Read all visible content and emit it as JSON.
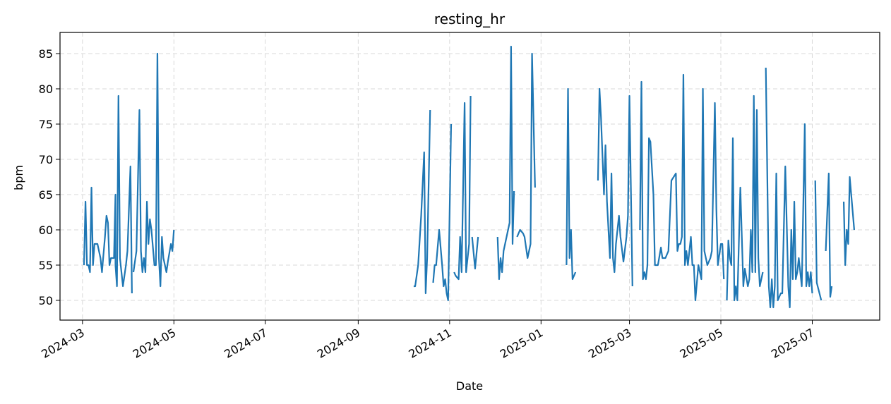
{
  "chart_data": {
    "type": "line",
    "title": "resting_hr",
    "xlabel": "Date",
    "ylabel": "bpm",
    "x_axis": "date",
    "xlim": [
      "2024-02-15",
      "2025-08-15"
    ],
    "ylim": [
      47.2,
      88
    ],
    "grid": true,
    "grid_style": "dashed",
    "line_color": "#1f77b4",
    "x_ticks": [
      "2024-03-01",
      "2024-05-01",
      "2024-07-01",
      "2024-09-01",
      "2024-11-01",
      "2025-01-01",
      "2025-03-01",
      "2025-05-01",
      "2025-07-01"
    ],
    "x_tick_labels": [
      "2024-03",
      "2024-05",
      "2024-07",
      "2024-09",
      "2024-11",
      "2025-01",
      "2025-03",
      "2025-05",
      "2025-07"
    ],
    "y_ticks": [
      50,
      55,
      60,
      65,
      70,
      75,
      80,
      85
    ],
    "y_tick_labels": [
      "50",
      "55",
      "60",
      "65",
      "70",
      "75",
      "80",
      "85"
    ],
    "series": [
      {
        "segments": [
          [
            [
              "2024-03-02",
              55
            ],
            [
              "2024-03-03",
              64
            ],
            [
              "2024-03-04",
              55
            ],
            [
              "2024-03-05",
              55
            ],
            [
              "2024-03-06",
              54
            ],
            [
              "2024-03-07",
              66
            ],
            [
              "2024-03-08",
              55
            ],
            [
              "2024-03-09",
              58
            ],
            [
              "2024-03-10",
              58
            ],
            [
              "2024-03-11",
              58
            ],
            [
              "2024-03-13",
              56
            ],
            [
              "2024-03-14",
              54
            ],
            [
              "2024-03-16",
              59
            ],
            [
              "2024-03-17",
              62
            ],
            [
              "2024-03-18",
              61
            ],
            [
              "2024-03-19",
              55
            ],
            [
              "2024-03-20",
              56
            ],
            [
              "2024-03-22",
              56
            ],
            [
              "2024-03-23",
              65
            ],
            [
              "2024-03-23",
              55
            ],
            [
              "2024-03-24",
              52
            ],
            [
              "2024-03-25",
              79
            ],
            [
              "2024-03-26",
              56
            ],
            [
              "2024-03-28",
              52
            ],
            [
              "2024-03-30",
              55
            ],
            [
              "2024-03-31",
              57
            ],
            [
              "2024-04-02",
              69
            ],
            [
              "2024-04-03",
              51
            ]
          ],
          [
            [
              "2024-04-04",
              54
            ],
            [
              "2024-04-06",
              57
            ],
            [
              "2024-04-08",
              77
            ],
            [
              "2024-04-09",
              57
            ],
            [
              "2024-04-10",
              54
            ],
            [
              "2024-04-11",
              56
            ],
            [
              "2024-04-12",
              54
            ],
            [
              "2024-04-13",
              64
            ],
            [
              "2024-04-14",
              58
            ],
            [
              "2024-04-15",
              61.5
            ],
            [
              "2024-04-16",
              60
            ],
            [
              "2024-04-18",
              55
            ],
            [
              "2024-04-19",
              55
            ],
            [
              "2024-04-20",
              85
            ],
            [
              "2024-04-21",
              56
            ],
            [
              "2024-04-22",
              52
            ],
            [
              "2024-04-23",
              59
            ],
            [
              "2024-04-24",
              56
            ],
            [
              "2024-04-26",
              54
            ],
            [
              "2024-04-27",
              55.5
            ],
            [
              "2024-04-29",
              58
            ],
            [
              "2024-04-30",
              57
            ],
            [
              "2024-05-01",
              60
            ]
          ]
        ]
      },
      {
        "segments": [
          [
            [
              "2024-10-08",
              52
            ],
            [
              "2024-10-09",
              52
            ],
            [
              "2024-10-11",
              55
            ],
            [
              "2024-10-13",
              62
            ],
            [
              "2024-10-15",
              71
            ],
            [
              "2024-10-16",
              51
            ],
            [
              "2024-10-17",
              56
            ],
            [
              "2024-10-19",
              77
            ]
          ],
          [
            [
              "2024-10-21",
              52.5
            ],
            [
              "2024-10-22",
              55
            ],
            [
              "2024-10-23",
              55
            ],
            [
              "2024-10-25",
              60
            ],
            [
              "2024-10-27",
              55
            ],
            [
              "2024-10-28",
              52
            ],
            [
              "2024-10-29",
              53
            ],
            [
              "2024-10-30",
              51
            ],
            [
              "2024-10-31",
              50
            ],
            [
              "2024-11-02",
              75
            ]
          ],
          [
            [
              "2024-11-04",
              54
            ],
            [
              "2024-11-05",
              53.5
            ],
            [
              "2024-11-07",
              53
            ],
            [
              "2024-11-08",
              59
            ],
            [
              "2024-11-09",
              54
            ],
            [
              "2024-11-11",
              78
            ],
            [
              "2024-11-12",
              54
            ],
            [
              "2024-11-14",
              58
            ],
            [
              "2024-11-15",
              79
            ]
          ],
          [
            [
              "2024-11-16",
              59
            ],
            [
              "2024-11-18",
              54.5
            ],
            [
              "2024-11-20",
              59
            ]
          ],
          [
            [
              "2024-12-03",
              59
            ],
            [
              "2024-12-04",
              53
            ],
            [
              "2024-12-05",
              56
            ],
            [
              "2024-12-06",
              54
            ],
            [
              "2024-12-07",
              57
            ],
            [
              "2024-12-09",
              59
            ],
            [
              "2024-12-11",
              61
            ],
            [
              "2024-12-12",
              86
            ],
            [
              "2024-12-13",
              58
            ],
            [
              "2024-12-14",
              65.5
            ]
          ],
          [
            [
              "2024-12-16",
              59
            ],
            [
              "2024-12-18",
              60
            ],
            [
              "2024-12-20",
              59.5
            ],
            [
              "2024-12-21",
              59
            ],
            [
              "2024-12-23",
              56
            ],
            [
              "2024-12-25",
              58
            ],
            [
              "2024-12-26",
              85
            ],
            [
              "2024-12-28",
              66
            ]
          ]
        ]
      },
      {
        "segments": [
          [
            [
              "2025-01-18",
              55
            ],
            [
              "2025-01-19",
              80
            ],
            [
              "2025-01-20",
              56
            ],
            [
              "2025-01-21",
              60
            ],
            [
              "2025-01-22",
              53
            ],
            [
              "2025-01-24",
              54
            ]
          ],
          [
            [
              "2025-02-08",
              67
            ],
            [
              "2025-02-09",
              80
            ],
            [
              "2025-02-10",
              76
            ],
            [
              "2025-02-12",
              65
            ],
            [
              "2025-02-13",
              72
            ],
            [
              "2025-02-14",
              64
            ],
            [
              "2025-02-16",
              56
            ],
            [
              "2025-02-17",
              68
            ],
            [
              "2025-02-18",
              56
            ],
            [
              "2025-02-19",
              54
            ],
            [
              "2025-02-20",
              58
            ],
            [
              "2025-02-22",
              62
            ],
            [
              "2025-02-23",
              59
            ],
            [
              "2025-02-25",
              55.5
            ],
            [
              "2025-02-27",
              59
            ],
            [
              "2025-02-28",
              62
            ],
            [
              "2025-03-01",
              79
            ],
            [
              "2025-03-03",
              52
            ]
          ],
          [
            [
              "2025-03-08",
              60
            ],
            [
              "2025-03-09",
              81
            ],
            [
              "2025-03-10",
              53
            ],
            [
              "2025-03-11",
              54
            ],
            [
              "2025-03-12",
              53
            ],
            [
              "2025-03-13",
              55
            ],
            [
              "2025-03-14",
              73
            ],
            [
              "2025-03-15",
              72.5
            ],
            [
              "2025-03-17",
              65
            ],
            [
              "2025-03-18",
              55
            ],
            [
              "2025-03-20",
              55
            ],
            [
              "2025-03-22",
              57.5
            ],
            [
              "2025-03-23",
              56
            ],
            [
              "2025-03-25",
              56
            ],
            [
              "2025-03-27",
              57
            ],
            [
              "2025-03-29",
              67
            ],
            [
              "2025-04-01",
              68
            ],
            [
              "2025-04-02",
              57
            ],
            [
              "2025-04-03",
              58
            ],
            [
              "2025-04-04",
              58
            ],
            [
              "2025-04-05",
              59
            ],
            [
              "2025-04-06",
              82
            ],
            [
              "2025-04-07",
              55
            ],
            [
              "2025-04-08",
              57
            ],
            [
              "2025-04-09",
              55
            ],
            [
              "2025-04-10",
              57
            ],
            [
              "2025-04-11",
              59
            ],
            [
              "2025-04-12",
              55
            ],
            [
              "2025-04-13",
              55
            ],
            [
              "2025-04-14",
              50
            ],
            [
              "2025-04-16",
              55
            ],
            [
              "2025-04-17",
              54
            ],
            [
              "2025-04-18",
              53
            ],
            [
              "2025-04-19",
              80
            ],
            [
              "2025-04-20",
              57
            ],
            [
              "2025-04-21",
              56
            ],
            [
              "2025-04-22",
              55
            ],
            [
              "2025-04-24",
              56
            ],
            [
              "2025-04-25",
              57
            ],
            [
              "2025-04-27",
              78
            ],
            [
              "2025-04-28",
              63
            ],
            [
              "2025-04-29",
              55
            ],
            [
              "2025-05-01",
              58
            ],
            [
              "2025-05-02",
              58
            ],
            [
              "2025-05-03",
              53
            ]
          ],
          [
            [
              "2025-05-05",
              50
            ],
            [
              "2025-05-06",
              58.5
            ],
            [
              "2025-05-07",
              56
            ],
            [
              "2025-05-08",
              55
            ],
            [
              "2025-05-09",
              73
            ],
            [
              "2025-05-10",
              50
            ],
            [
              "2025-05-11",
              52
            ],
            [
              "2025-05-12",
              50
            ],
            [
              "2025-05-14",
              66
            ],
            [
              "2025-05-16",
              52
            ],
            [
              "2025-05-17",
              54.5
            ],
            [
              "2025-05-19",
              52
            ],
            [
              "2025-05-20",
              53
            ],
            [
              "2025-05-21",
              60
            ],
            [
              "2025-05-22",
              54
            ],
            [
              "2025-05-23",
              79
            ],
            [
              "2025-05-24",
              54
            ],
            [
              "2025-05-25",
              77
            ],
            [
              "2025-05-26",
              56
            ],
            [
              "2025-05-27",
              52
            ],
            [
              "2025-05-28",
              53
            ],
            [
              "2025-05-29",
              54
            ]
          ],
          [
            [
              "2025-05-31",
              83
            ],
            [
              "2025-06-02",
              52
            ],
            [
              "2025-06-03",
              49
            ],
            [
              "2025-06-04",
              53
            ],
            [
              "2025-06-05",
              49
            ],
            [
              "2025-06-06",
              52
            ],
            [
              "2025-06-07",
              68
            ],
            [
              "2025-06-08",
              50
            ],
            [
              "2025-06-10",
              51
            ],
            [
              "2025-06-11",
              51
            ],
            [
              "2025-06-13",
              69
            ],
            [
              "2025-06-15",
              52
            ],
            [
              "2025-06-16",
              49
            ],
            [
              "2025-06-17",
              60
            ],
            [
              "2025-06-18",
              53
            ],
            [
              "2025-06-19",
              64
            ],
            [
              "2025-06-20",
              53
            ],
            [
              "2025-06-21",
              54
            ],
            [
              "2025-06-22",
              56
            ],
            [
              "2025-06-23",
              54
            ],
            [
              "2025-06-24",
              52
            ],
            [
              "2025-06-26",
              75
            ],
            [
              "2025-06-27",
              52
            ],
            [
              "2025-06-28",
              54
            ],
            [
              "2025-06-29",
              52
            ],
            [
              "2025-06-30",
              54
            ],
            [
              "2025-07-01",
              51
            ]
          ],
          [
            [
              "2025-07-03",
              67
            ],
            [
              "2025-07-04",
              52.5
            ],
            [
              "2025-07-07",
              50
            ]
          ],
          [
            [
              "2025-07-10",
              57
            ],
            [
              "2025-07-12",
              68
            ],
            [
              "2025-07-13",
              50.5
            ],
            [
              "2025-07-14",
              52
            ]
          ],
          [
            [
              "2025-07-22",
              64
            ],
            [
              "2025-07-23",
              55
            ],
            [
              "2025-07-24",
              60
            ],
            [
              "2025-07-25",
              58
            ],
            [
              "2025-07-26",
              67.5
            ],
            [
              "2025-07-29",
              60
            ]
          ]
        ]
      }
    ]
  }
}
